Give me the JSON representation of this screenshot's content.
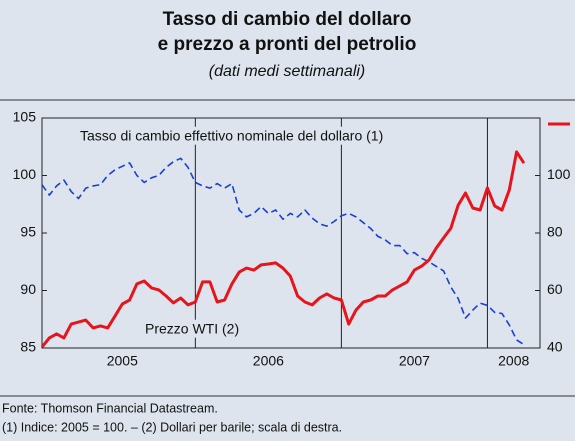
{
  "chart_data": {
    "type": "line",
    "title_lines": [
      "Tasso di cambio del dollaro",
      "e prezzo a pronti del petrolio"
    ],
    "subtitle": "(dati medi settimanali)",
    "annotations": [
      "Tasso di cambio effettivo nominale del dollaro (1)",
      "Prezzo WTI (2)"
    ],
    "notes": [
      "Fonte: Thomson Financial Datastream.",
      "(1) Indice: 2005 = 100. – (2) Dollari per barile; scala di destra."
    ],
    "x": [
      2004.95,
      2005.0,
      2005.05,
      2005.1,
      2005.15,
      2005.2,
      2005.25,
      2005.3,
      2005.35,
      2005.4,
      2005.45,
      2005.5,
      2005.55,
      2005.6,
      2005.65,
      2005.7,
      2005.75,
      2005.8,
      2005.85,
      2005.9,
      2005.95,
      2006.0,
      2006.05,
      2006.1,
      2006.15,
      2006.2,
      2006.25,
      2006.3,
      2006.35,
      2006.4,
      2006.45,
      2006.5,
      2006.55,
      2006.6,
      2006.65,
      2006.7,
      2006.75,
      2006.8,
      2006.85,
      2006.9,
      2006.95,
      2007.0,
      2007.05,
      2007.1,
      2007.15,
      2007.2,
      2007.25,
      2007.3,
      2007.35,
      2007.4,
      2007.45,
      2007.5,
      2007.55,
      2007.6,
      2007.65,
      2007.7,
      2007.75,
      2007.8,
      2007.85,
      2007.9,
      2007.95,
      2008.0,
      2008.05,
      2008.1,
      2008.15,
      2008.2,
      2008.25
    ],
    "series": [
      {
        "name": "Tasso di cambio effettivo nominale del dollaro",
        "color": "#1a3fd6",
        "dashed": true,
        "axis": "y",
        "values": [
          99.2,
          98.3,
          99.1,
          99.6,
          98.6,
          98.0,
          98.9,
          99.1,
          99.2,
          100.0,
          100.5,
          100.8,
          101.1,
          100.0,
          99.4,
          99.8,
          100.0,
          100.7,
          101.2,
          101.5,
          100.7,
          99.4,
          99.1,
          98.9,
          99.3,
          98.9,
          99.3,
          97.0,
          96.4,
          96.7,
          97.3,
          96.7,
          97.0,
          96.2,
          96.7,
          96.4,
          97.0,
          96.3,
          95.8,
          95.6,
          96.0,
          96.5,
          96.7,
          96.4,
          95.9,
          95.4,
          94.7,
          94.4,
          93.9,
          93.9,
          93.2,
          93.3,
          92.8,
          92.5,
          92.1,
          91.7,
          90.3,
          89.3,
          87.6,
          88.3,
          88.9,
          88.7,
          88.1,
          88.0,
          87.0,
          85.7,
          85.3
        ]
      },
      {
        "name": "Prezzo WTI",
        "color": "#e8141b",
        "dashed": false,
        "axis": "y2",
        "values": [
          40.3,
          43.5,
          44.9,
          43.5,
          48.3,
          49.0,
          49.7,
          47.0,
          47.7,
          47.0,
          51.1,
          55.3,
          56.7,
          62.3,
          63.3,
          60.9,
          60.2,
          58.1,
          55.7,
          57.4,
          55.0,
          56.0,
          63.0,
          63.0,
          56.0,
          56.7,
          62.3,
          66.4,
          67.8,
          67.1,
          68.9,
          69.2,
          69.6,
          67.8,
          65.0,
          58.1,
          56.0,
          55.0,
          57.4,
          58.8,
          57.4,
          56.7,
          48.3,
          53.2,
          56.0,
          56.7,
          58.1,
          58.1,
          60.2,
          61.6,
          63.0,
          67.1,
          68.5,
          70.6,
          74.8,
          78.3,
          81.7,
          89.7,
          93.9,
          88.7,
          88.0,
          95.7,
          89.4,
          88.0,
          95.0,
          108.2,
          104.3
        ]
      }
    ],
    "xlim": [
      2004.95,
      2008.36
    ],
    "xticks": [
      {
        "value": 2005.5,
        "label": "2005"
      },
      {
        "value": 2006.5,
        "label": "2006"
      },
      {
        "value": 2007.5,
        "label": "2007"
      },
      {
        "value": 2008.18,
        "label": "2008"
      }
    ],
    "xgrid": [
      2006,
      2007,
      2008
    ],
    "ylim": [
      85,
      105
    ],
    "yticks": [
      85,
      90,
      95,
      100,
      105
    ],
    "y2lim": [
      40,
      120
    ],
    "y2ticks": [
      40,
      60,
      80,
      100
    ]
  }
}
